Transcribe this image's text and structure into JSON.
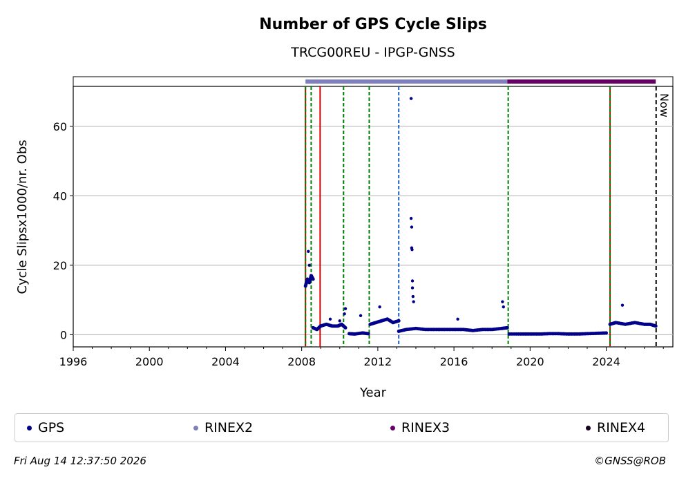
{
  "footer": {
    "timestamp": "Fri Aug 14 12:37:50 2026",
    "copyright": "©GNSS@ROB"
  },
  "chart_data": {
    "type": "scatter",
    "title": "Number of GPS Cycle Slips",
    "subtitle": "TRCG00REU - IPGP-GNSS",
    "xlabel": "Year",
    "ylabel": "Cycle Slipsx1000/nr. Obs",
    "xlim": [
      1996,
      2027.5
    ],
    "ylim": [
      -3.5,
      71.5
    ],
    "xticks": [
      1996,
      2000,
      2004,
      2008,
      2012,
      2016,
      2020,
      2024
    ],
    "xtick_labels": [
      "1996",
      "2000",
      "2004",
      "2008",
      "2012",
      "2016",
      "2020",
      "2024"
    ],
    "yticks": [
      0,
      20,
      40,
      60
    ],
    "ytick_labels": [
      "0",
      "20",
      "40",
      "60"
    ],
    "grid": "horizontal",
    "legend_position": "bottom",
    "colors": {
      "GPS": "#00008b",
      "RINEX2": "#7f7fbf",
      "RINEX3": "#660066",
      "RINEX4": "#1a0020",
      "receiver_change": "#cc0000",
      "antenna_change": "#008000",
      "other_change": "#1f5fbf",
      "now_line": "#000000"
    },
    "series": [
      {
        "name": "GPS",
        "segments": [
          {
            "x": [
              2008.2,
              2008.3,
              2008.4,
              2008.5,
              2008.6
            ],
            "y": [
              14,
              16,
              15,
              17,
              16
            ]
          },
          {
            "x": [
              2008.6,
              2008.8,
              2009.0,
              2009.3,
              2009.6,
              2009.9,
              2010.1,
              2010.3
            ],
            "y": [
              2,
              1.5,
              2.5,
              3,
              2.5,
              2.5,
              3,
              2
            ]
          },
          {
            "x": [
              2010.5,
              2010.8,
              2011.2,
              2011.5
            ],
            "y": [
              0.3,
              0.2,
              0.5,
              0.3
            ]
          },
          {
            "x": [
              2011.6,
              2011.9,
              2012.2,
              2012.5,
              2012.8,
              2013.1
            ],
            "y": [
              3,
              3.5,
              4,
              4.5,
              3.5,
              4
            ]
          },
          {
            "x": [
              2013.1,
              2013.5,
              2014.0,
              2014.5,
              2015.0,
              2015.5,
              2016.0,
              2016.5,
              2017.0,
              2017.5,
              2018.0,
              2018.5,
              2018.8
            ],
            "y": [
              1,
              1.5,
              1.8,
              1.5,
              1.5,
              1.5,
              1.5,
              1.5,
              1.2,
              1.5,
              1.5,
              1.8,
              2
            ]
          },
          {
            "x": [
              2018.9,
              2019.5,
              2020.0,
              2020.5,
              2021.0,
              2021.5,
              2022.0,
              2022.5,
              2023.0,
              2023.5,
              2024.0
            ],
            "y": [
              0.2,
              0.2,
              0.2,
              0.2,
              0.3,
              0.3,
              0.2,
              0.2,
              0.3,
              0.4,
              0.5
            ]
          },
          {
            "x": [
              2024.2,
              2024.5,
              2025.0,
              2025.5,
              2026.0,
              2026.3,
              2026.6
            ],
            "y": [
              3,
              3.5,
              3,
              3.5,
              3,
              3,
              2.5
            ]
          }
        ],
        "outliers": {
          "x": [
            2008.35,
            2008.4,
            2009.5,
            2010.0,
            2010.25,
            2010.3,
            2011.1,
            2012.1,
            2013.75,
            2013.75,
            2013.78,
            2013.78,
            2013.8,
            2013.82,
            2013.82,
            2013.85,
            2013.88,
            2016.2,
            2018.55,
            2018.6,
            2024.85
          ],
          "y": [
            24,
            20,
            4.5,
            4,
            6,
            7.5,
            5.5,
            8,
            68,
            33.5,
            31,
            25,
            24.5,
            15.5,
            13.5,
            11,
            9.5,
            4.5,
            9.5,
            8,
            8.5
          ]
        }
      }
    ],
    "data_format_bars": [
      {
        "name": "RINEX2",
        "start": 2008.2,
        "end": 2018.8
      },
      {
        "name": "RINEX3",
        "start": 2018.8,
        "end": 2026.6
      },
      {
        "name": "RINEX4",
        "start": 2026.6,
        "end": 2026.6
      }
    ],
    "event_lines": [
      {
        "x": 2008.2,
        "kind": "receiver_change"
      },
      {
        "x": 2008.2,
        "kind": "antenna_change"
      },
      {
        "x": 2008.5,
        "kind": "antenna_change"
      },
      {
        "x": 2008.97,
        "kind": "receiver_change"
      },
      {
        "x": 2010.2,
        "kind": "antenna_change"
      },
      {
        "x": 2011.55,
        "kind": "antenna_change"
      },
      {
        "x": 2013.1,
        "kind": "other_change"
      },
      {
        "x": 2018.85,
        "kind": "antenna_change"
      },
      {
        "x": 2024.2,
        "kind": "receiver_change"
      },
      {
        "x": 2024.2,
        "kind": "antenna_change"
      }
    ],
    "now": {
      "x": 2026.62,
      "label": "Now"
    },
    "legend": [
      "GPS",
      "RINEX2",
      "RINEX3",
      "RINEX4"
    ]
  }
}
